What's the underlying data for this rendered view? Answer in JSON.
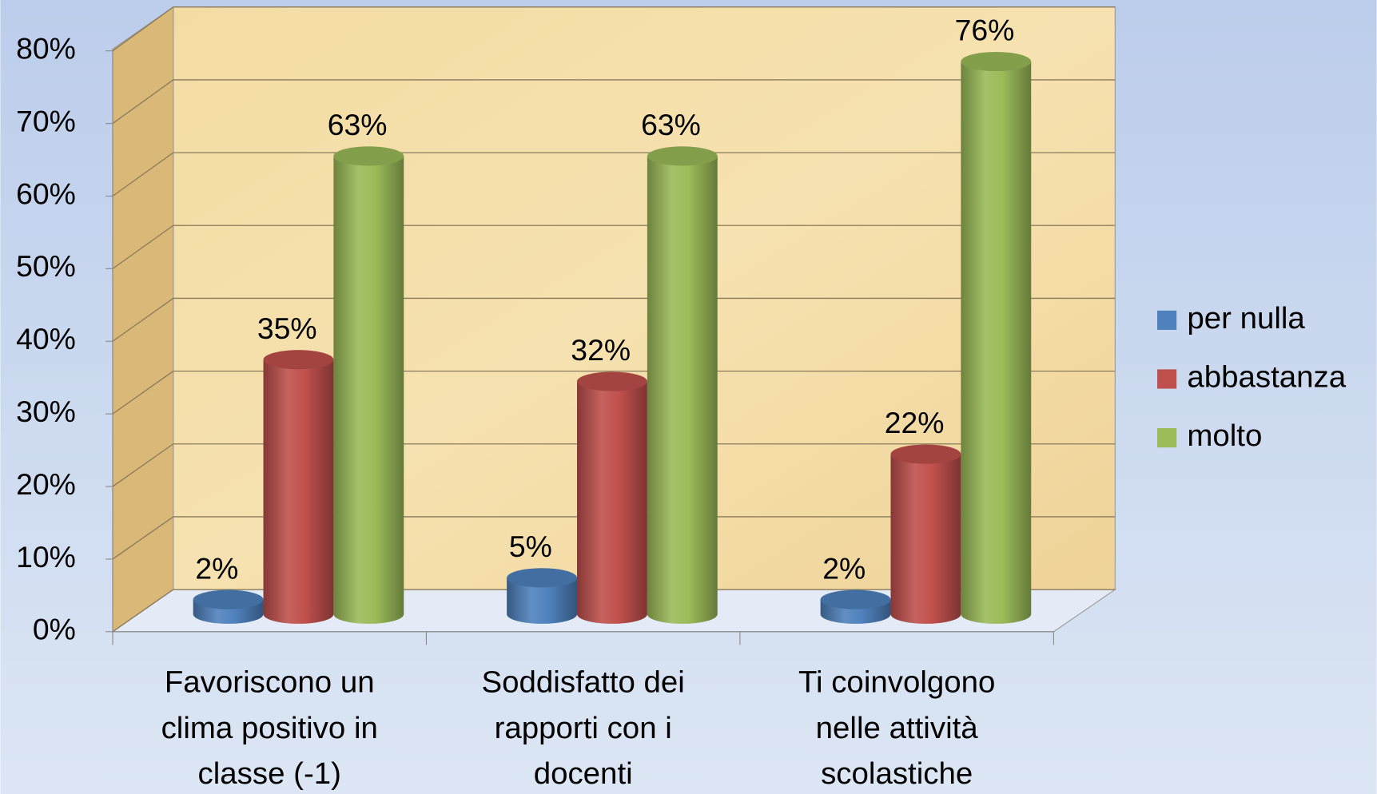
{
  "chart_data": {
    "type": "bar3d",
    "categories": [
      "Favoriscono un clima positivo in classe (-1)",
      "Soddisfatto dei rapporti con i docenti",
      "Ti coinvolgono nelle attività scolastiche"
    ],
    "series": [
      {
        "name": "per nulla",
        "color": "#4f81bd",
        "values": [
          2,
          5,
          2
        ],
        "value_labels": [
          "2%",
          "5%",
          "2%"
        ]
      },
      {
        "name": "abbastanza",
        "color": "#c0504d",
        "values": [
          35,
          32,
          22
        ],
        "value_labels": [
          "35%",
          "32%",
          "22%"
        ]
      },
      {
        "name": "molto",
        "color": "#9bbb59",
        "values": [
          63,
          63,
          76
        ],
        "value_labels": [
          "63%",
          "63%",
          "76%"
        ]
      }
    ],
    "ylim": [
      0,
      80
    ],
    "yticks": [
      {
        "value": 0,
        "label": "0%"
      },
      {
        "value": 10,
        "label": "10%"
      },
      {
        "value": 20,
        "label": "20%"
      },
      {
        "value": 30,
        "label": "30%"
      },
      {
        "value": 40,
        "label": "40%"
      },
      {
        "value": 50,
        "label": "50%"
      },
      {
        "value": 60,
        "label": "60%"
      },
      {
        "value": 70,
        "label": "70%"
      },
      {
        "value": 80,
        "label": "80%"
      }
    ],
    "grid": true,
    "legend": "right"
  }
}
